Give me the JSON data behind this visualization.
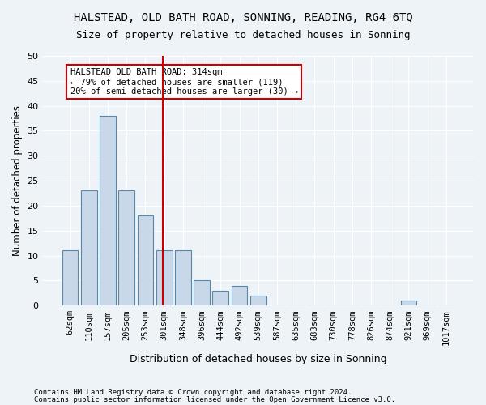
{
  "title1": "HALSTEAD, OLD BATH ROAD, SONNING, READING, RG4 6TQ",
  "title2": "Size of property relative to detached houses in Sonning",
  "xlabel": "Distribution of detached houses by size in Sonning",
  "ylabel": "Number of detached properties",
  "categories": [
    "62sqm",
    "110sqm",
    "157sqm",
    "205sqm",
    "253sqm",
    "301sqm",
    "348sqm",
    "396sqm",
    "444sqm",
    "492sqm",
    "539sqm",
    "587sqm",
    "635sqm",
    "683sqm",
    "730sqm",
    "778sqm",
    "826sqm",
    "874sqm",
    "921sqm",
    "969sqm",
    "1017sqm"
  ],
  "values": [
    11,
    23,
    38,
    23,
    18,
    11,
    11,
    5,
    3,
    4,
    2,
    0,
    0,
    0,
    0,
    0,
    0,
    0,
    1,
    0,
    0
  ],
  "bar_color": "#c8d8e8",
  "bar_edge_color": "#5588aa",
  "vline_x": 4.93,
  "vline_color": "#cc0000",
  "annotation_title": "HALSTEAD OLD BATH ROAD: 314sqm",
  "annotation_line1": "← 79% of detached houses are smaller (119)",
  "annotation_line2": "20% of semi-detached houses are larger (30) →",
  "annotation_box_color": "#ffffff",
  "annotation_box_edge_color": "#cc0000",
  "ylim": [
    0,
    50
  ],
  "yticks": [
    0,
    5,
    10,
    15,
    20,
    25,
    30,
    35,
    40,
    45,
    50
  ],
  "footnote1": "Contains HM Land Registry data © Crown copyright and database right 2024.",
  "footnote2": "Contains public sector information licensed under the Open Government Licence v3.0.",
  "bg_color": "#eef3f8",
  "grid_color": "#ffffff",
  "title1_fontsize": 10,
  "title2_fontsize": 9
}
